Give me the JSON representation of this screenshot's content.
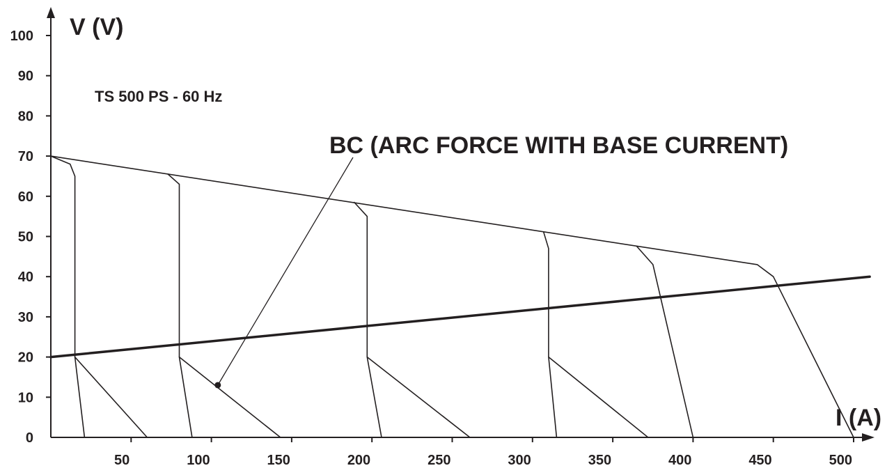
{
  "chart_data": {
    "type": "line",
    "chart_label": "TS 500 PS - 60 Hz",
    "xlabel": "I (A)",
    "ylabel": "V (V)",
    "xlim": [
      0,
      510
    ],
    "ylim": [
      0,
      100
    ],
    "x_ticks": [
      50,
      100,
      150,
      200,
      250,
      300,
      350,
      400,
      450,
      500
    ],
    "x_tick_labels": [
      "50",
      "100",
      "150",
      "200",
      "250",
      "300",
      "350",
      "400",
      "450",
      "500"
    ],
    "y_ticks": [
      0,
      10,
      20,
      30,
      40,
      50,
      60,
      70,
      80,
      90,
      100
    ],
    "y_tick_labels": [
      "0",
      "10",
      "20",
      "30",
      "40",
      "50",
      "60",
      "70",
      "80",
      "90",
      "100"
    ],
    "grid": false,
    "legend": "none",
    "colors": {
      "line": "#231f20",
      "background": "#ffffff"
    },
    "series": [
      {
        "role": "envelope",
        "points": [
          [
            0,
            70
          ],
          [
            440,
            43
          ],
          [
            450,
            40
          ],
          [
            500,
            0
          ]
        ]
      },
      {
        "role": "load-line",
        "points": [
          [
            0,
            20
          ],
          [
            510,
            40
          ]
        ]
      },
      {
        "role": "static-characteristic",
        "points": [
          [
            0,
            70
          ],
          [
            12,
            68
          ],
          [
            15,
            65
          ],
          [
            15,
            20
          ],
          [
            21,
            0
          ]
        ]
      },
      {
        "role": "static-characteristic",
        "points": [
          [
            73,
            65.5
          ],
          [
            80,
            63
          ],
          [
            80,
            20
          ],
          [
            88,
            0
          ]
        ]
      },
      {
        "role": "static-characteristic",
        "points": [
          [
            189,
            58.5
          ],
          [
            197,
            55
          ],
          [
            197,
            20
          ],
          [
            206,
            0
          ]
        ]
      },
      {
        "role": "static-characteristic",
        "points": [
          [
            307,
            51
          ],
          [
            310,
            47
          ],
          [
            310,
            20
          ],
          [
            315,
            0
          ]
        ]
      },
      {
        "role": "static-characteristic",
        "points": [
          [
            365,
            47.5
          ],
          [
            375,
            43
          ],
          [
            400,
            0
          ]
        ]
      },
      {
        "role": "arc-force",
        "points": [
          [
            15,
            20
          ],
          [
            60,
            0
          ]
        ]
      },
      {
        "role": "arc-force",
        "points": [
          [
            80,
            20
          ],
          [
            143,
            0
          ]
        ]
      },
      {
        "role": "arc-force",
        "points": [
          [
            197,
            20
          ],
          [
            261,
            0
          ]
        ]
      },
      {
        "role": "arc-force",
        "points": [
          [
            310,
            20
          ],
          [
            372,
            0
          ]
        ]
      }
    ],
    "annotations": [
      {
        "text": "BC (ARC FORCE WITH BASE CURRENT)",
        "pointer_to": [
          104,
          13
        ]
      }
    ]
  }
}
